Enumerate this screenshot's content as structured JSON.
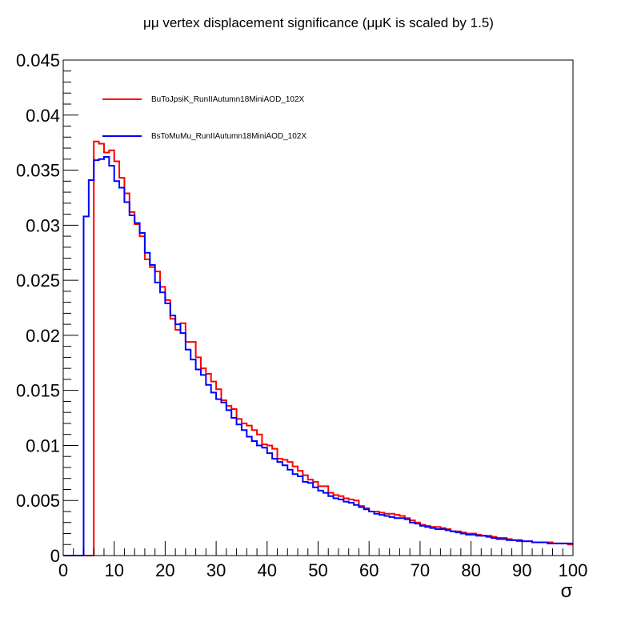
{
  "chart_data": {
    "type": "line",
    "style": "step-histogram",
    "title": "μμ vertex displacement significance (μμK is scaled by 1.5)",
    "xlabel": "σ",
    "ylabel": "",
    "xlim": [
      0,
      100
    ],
    "ylim": [
      0,
      0.045
    ],
    "bin_width": 1,
    "xticks": [
      0,
      10,
      20,
      30,
      40,
      50,
      60,
      70,
      80,
      90,
      100
    ],
    "xtick_labels": [
      "0",
      "10",
      "20",
      "30",
      "40",
      "50",
      "60",
      "70",
      "80",
      "90",
      "100"
    ],
    "yticks": [
      0,
      0.005,
      0.01,
      0.015,
      0.02,
      0.025,
      0.03,
      0.035,
      0.04,
      0.045
    ],
    "ytick_labels": [
      "0",
      "0.005",
      "0.01",
      "0.015",
      "0.02",
      "0.025",
      "0.03",
      "0.035",
      "0.04",
      "0.045"
    ],
    "grid": false,
    "legend_position": "top-left",
    "colors": {
      "red": "#ff0000",
      "blue": "#0000ff",
      "frame": "#000000"
    },
    "series": [
      {
        "name": "BuToJpsiK_RunIIAutumn18MiniAOD_102X",
        "color": "#ff0000",
        "x": [
          0,
          1,
          2,
          3,
          4,
          5,
          6,
          7,
          8,
          9,
          10,
          11,
          12,
          13,
          14,
          15,
          16,
          17,
          18,
          19,
          20,
          21,
          22,
          23,
          24,
          25,
          26,
          27,
          28,
          29,
          30,
          31,
          32,
          33,
          34,
          35,
          36,
          37,
          38,
          39,
          40,
          41,
          42,
          43,
          44,
          45,
          46,
          47,
          48,
          49,
          50,
          51,
          52,
          53,
          54,
          55,
          56,
          57,
          58,
          59,
          60,
          61,
          62,
          63,
          64,
          65,
          66,
          67,
          68,
          69,
          70,
          71,
          72,
          73,
          74,
          75,
          76,
          77,
          78,
          79,
          80,
          81,
          82,
          83,
          84,
          85,
          86,
          87,
          88,
          89,
          90,
          91,
          92,
          93,
          94,
          95,
          96,
          97,
          98,
          99
        ],
        "values": [
          0,
          0,
          0,
          0,
          0,
          0,
          0.0376,
          0.0374,
          0.0366,
          0.0368,
          0.0358,
          0.0343,
          0.0329,
          0.0312,
          0.0301,
          0.029,
          0.0269,
          0.0262,
          0.0258,
          0.0244,
          0.0232,
          0.0215,
          0.0205,
          0.0211,
          0.0194,
          0.0194,
          0.018,
          0.017,
          0.0165,
          0.0158,
          0.0151,
          0.0141,
          0.0136,
          0.0133,
          0.0124,
          0.012,
          0.0118,
          0.0114,
          0.011,
          0.0101,
          0.01,
          0.0097,
          0.0088,
          0.0087,
          0.0085,
          0.0081,
          0.0077,
          0.0073,
          0.0069,
          0.0067,
          0.0063,
          0.0063,
          0.0057,
          0.0055,
          0.0054,
          0.0052,
          0.0051,
          0.005,
          0.0045,
          0.0043,
          0.004,
          0.004,
          0.0039,
          0.0038,
          0.0038,
          0.0037,
          0.0036,
          0.0034,
          0.0032,
          0.003,
          0.0028,
          0.0027,
          0.0026,
          0.0026,
          0.0025,
          0.0024,
          0.0022,
          0.0022,
          0.0021,
          0.002,
          0.002,
          0.0019,
          0.0018,
          0.0018,
          0.0017,
          0.0016,
          0.0016,
          0.0015,
          0.0014,
          0.0013,
          0.0013,
          0.0013,
          0.0012,
          0.0012,
          0.0012,
          0.0012,
          0.0011,
          0.0011,
          0.0011,
          0.001
        ]
      },
      {
        "name": "BsToMuMu_RunIIAutumn18MiniAOD_102X",
        "color": "#0000ff",
        "x": [
          0,
          1,
          2,
          3,
          4,
          5,
          6,
          7,
          8,
          9,
          10,
          11,
          12,
          13,
          14,
          15,
          16,
          17,
          18,
          19,
          20,
          21,
          22,
          23,
          24,
          25,
          26,
          27,
          28,
          29,
          30,
          31,
          32,
          33,
          34,
          35,
          36,
          37,
          38,
          39,
          40,
          41,
          42,
          43,
          44,
          45,
          46,
          47,
          48,
          49,
          50,
          51,
          52,
          53,
          54,
          55,
          56,
          57,
          58,
          59,
          60,
          61,
          62,
          63,
          64,
          65,
          66,
          67,
          68,
          69,
          70,
          71,
          72,
          73,
          74,
          75,
          76,
          77,
          78,
          79,
          80,
          81,
          82,
          83,
          84,
          85,
          86,
          87,
          88,
          89,
          90,
          91,
          92,
          93,
          94,
          95,
          96,
          97,
          98,
          99
        ],
        "values": [
          0,
          0,
          0,
          0,
          0.0308,
          0.0341,
          0.0359,
          0.036,
          0.0362,
          0.0354,
          0.034,
          0.0334,
          0.0321,
          0.0309,
          0.0302,
          0.0293,
          0.0275,
          0.0264,
          0.0248,
          0.0239,
          0.0229,
          0.0218,
          0.021,
          0.0202,
          0.0187,
          0.0178,
          0.0169,
          0.0164,
          0.0155,
          0.0148,
          0.0142,
          0.0139,
          0.0132,
          0.0125,
          0.0119,
          0.0114,
          0.0108,
          0.0104,
          0.01,
          0.0098,
          0.0093,
          0.0088,
          0.0085,
          0.0082,
          0.0078,
          0.0074,
          0.0072,
          0.0067,
          0.0066,
          0.0062,
          0.0059,
          0.0057,
          0.0054,
          0.0052,
          0.0051,
          0.0049,
          0.0048,
          0.0046,
          0.0044,
          0.0042,
          0.004,
          0.0038,
          0.0037,
          0.0036,
          0.0035,
          0.0034,
          0.0034,
          0.0033,
          0.003,
          0.0029,
          0.0027,
          0.0026,
          0.0025,
          0.0024,
          0.0024,
          0.0023,
          0.0022,
          0.0021,
          0.002,
          0.0019,
          0.0019,
          0.0018,
          0.0018,
          0.0017,
          0.0016,
          0.0015,
          0.0015,
          0.0014,
          0.0014,
          0.0014,
          0.0013,
          0.0013,
          0.0012,
          0.0012,
          0.0012,
          0.0011,
          0.0011,
          0.0011,
          0.0011,
          0.0011
        ]
      }
    ]
  }
}
